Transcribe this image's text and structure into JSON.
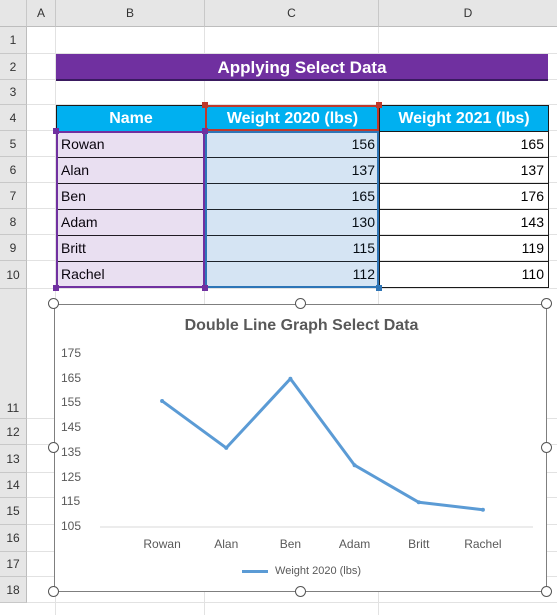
{
  "sheet": {
    "corner": "",
    "columns": [
      "A",
      "B",
      "C",
      "D"
    ],
    "rows": [
      "1",
      "2",
      "3",
      "4",
      "5",
      "6",
      "7",
      "8",
      "9",
      "10",
      "11",
      "12",
      "13",
      "14",
      "15",
      "16",
      "17",
      "18"
    ]
  },
  "banner": {
    "title": "Applying Select Data"
  },
  "table": {
    "headers": [
      "Name",
      "Weight 2020 (lbs)",
      "Weight 2021 (lbs)"
    ],
    "rows": [
      [
        "Rowan",
        "156",
        "165"
      ],
      [
        "Alan",
        "137",
        "137"
      ],
      [
        "Ben",
        "165",
        "176"
      ],
      [
        "Adam",
        "130",
        "143"
      ],
      [
        "Britt",
        "115",
        "119"
      ],
      [
        "Rachel",
        "112",
        "110"
      ]
    ]
  },
  "chart_data": {
    "type": "line",
    "title": "Double Line Graph Select Data",
    "categories": [
      "Rowan",
      "Alan",
      "Ben",
      "Adam",
      "Britt",
      "Rachel"
    ],
    "series": [
      {
        "name": "Weight 2020 (lbs)",
        "values": [
          156,
          137,
          165,
          130,
          115,
          112
        ],
        "color": "#5b9bd5"
      }
    ],
    "yticks": [
      "175",
      "165",
      "155",
      "145",
      "135",
      "125",
      "115",
      "105"
    ],
    "ylim": [
      105,
      175
    ],
    "grid": false,
    "legend": "bottom"
  },
  "colors": {
    "banner": "#7030a0",
    "header": "#00b0f0",
    "name_selection": "#7030a0",
    "value_selection": "#2e75b6",
    "header_selection": "#c0392b"
  }
}
